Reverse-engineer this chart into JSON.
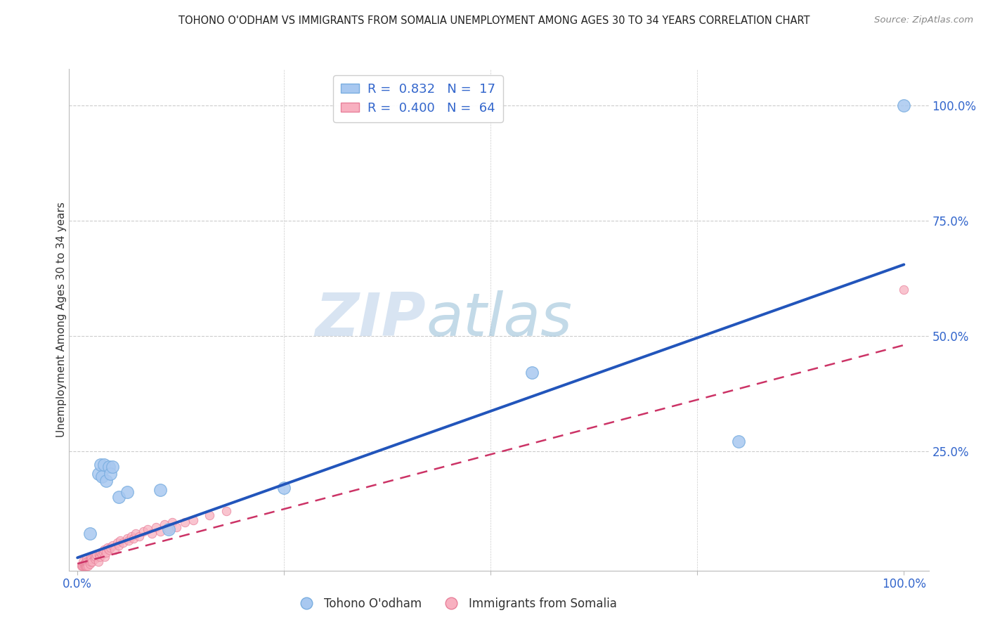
{
  "title": "TOHONO O'ODHAM VS IMMIGRANTS FROM SOMALIA UNEMPLOYMENT AMONG AGES 30 TO 34 YEARS CORRELATION CHART",
  "source": "Source: ZipAtlas.com",
  "ylabel": "Unemployment Among Ages 30 to 34 years",
  "background_color": "#ffffff",
  "watermark_zip": "ZIP",
  "watermark_atlas": "atlas",
  "legend_R1": "0.832",
  "legend_N1": "17",
  "legend_R2": "0.400",
  "legend_N2": "64",
  "blue_face": "#a8c8f0",
  "blue_edge": "#7aaee0",
  "pink_face": "#f8b0c0",
  "pink_edge": "#e8809a",
  "blue_line": "#2255bb",
  "pink_line": "#cc3366",
  "tick_color": "#3366cc",
  "grid_color": "#cccccc",
  "tohono_x": [
    0.015,
    0.025,
    0.028,
    0.03,
    0.032,
    0.035,
    0.038,
    0.04,
    0.042,
    0.05,
    0.06,
    0.1,
    0.11,
    0.25,
    0.55,
    0.8,
    1.0
  ],
  "tohono_y": [
    0.07,
    0.2,
    0.22,
    0.195,
    0.22,
    0.185,
    0.215,
    0.2,
    0.215,
    0.15,
    0.16,
    0.165,
    0.08,
    0.17,
    0.42,
    0.27,
    1.0
  ],
  "somalia_x": [
    0.005,
    0.006,
    0.007,
    0.007,
    0.008,
    0.008,
    0.009,
    0.01,
    0.01,
    0.01,
    0.011,
    0.011,
    0.012,
    0.012,
    0.013,
    0.014,
    0.015,
    0.015,
    0.016,
    0.016,
    0.017,
    0.018,
    0.02,
    0.021,
    0.022,
    0.023,
    0.025,
    0.026,
    0.027,
    0.028,
    0.03,
    0.031,
    0.032,
    0.033,
    0.035,
    0.036,
    0.038,
    0.04,
    0.042,
    0.045,
    0.048,
    0.05,
    0.052,
    0.055,
    0.06,
    0.062,
    0.065,
    0.068,
    0.07,
    0.075,
    0.08,
    0.085,
    0.09,
    0.095,
    0.1,
    0.105,
    0.11,
    0.115,
    0.12,
    0.13,
    0.14,
    0.16,
    0.18,
    1.0
  ],
  "somalia_y": [
    0.0,
    0.0,
    0.0,
    0.01,
    0.0,
    0.005,
    0.0,
    0.0,
    0.005,
    0.01,
    0.0,
    0.015,
    0.005,
    0.01,
    0.0,
    0.01,
    0.005,
    0.015,
    0.01,
    0.02,
    0.015,
    0.01,
    0.02,
    0.015,
    0.02,
    0.025,
    0.01,
    0.025,
    0.02,
    0.03,
    0.025,
    0.03,
    0.035,
    0.02,
    0.03,
    0.04,
    0.035,
    0.04,
    0.045,
    0.035,
    0.05,
    0.045,
    0.055,
    0.05,
    0.06,
    0.055,
    0.065,
    0.06,
    0.07,
    0.065,
    0.075,
    0.08,
    0.07,
    0.085,
    0.075,
    0.09,
    0.08,
    0.095,
    0.085,
    0.095,
    0.1,
    0.11,
    0.12,
    0.6
  ],
  "blue_trend_x0": 0.0,
  "blue_trend_y0": 0.018,
  "blue_trend_x1": 1.0,
  "blue_trend_y1": 0.655,
  "pink_trend_x0": 0.0,
  "pink_trend_y0": 0.005,
  "pink_trend_x1": 1.0,
  "pink_trend_y1": 0.48,
  "xlim": [
    -0.01,
    1.03
  ],
  "ylim": [
    -0.01,
    1.08
  ],
  "xtick_positions": [
    0.0,
    0.25,
    0.5,
    0.75,
    1.0
  ],
  "xticklabels": [
    "0.0%",
    "",
    "",
    "",
    "100.0%"
  ],
  "ytick_positions": [
    0.0,
    0.25,
    0.5,
    0.75,
    1.0
  ],
  "yticklabels": [
    "",
    "25.0%",
    "50.0%",
    "75.0%",
    "100.0%"
  ]
}
